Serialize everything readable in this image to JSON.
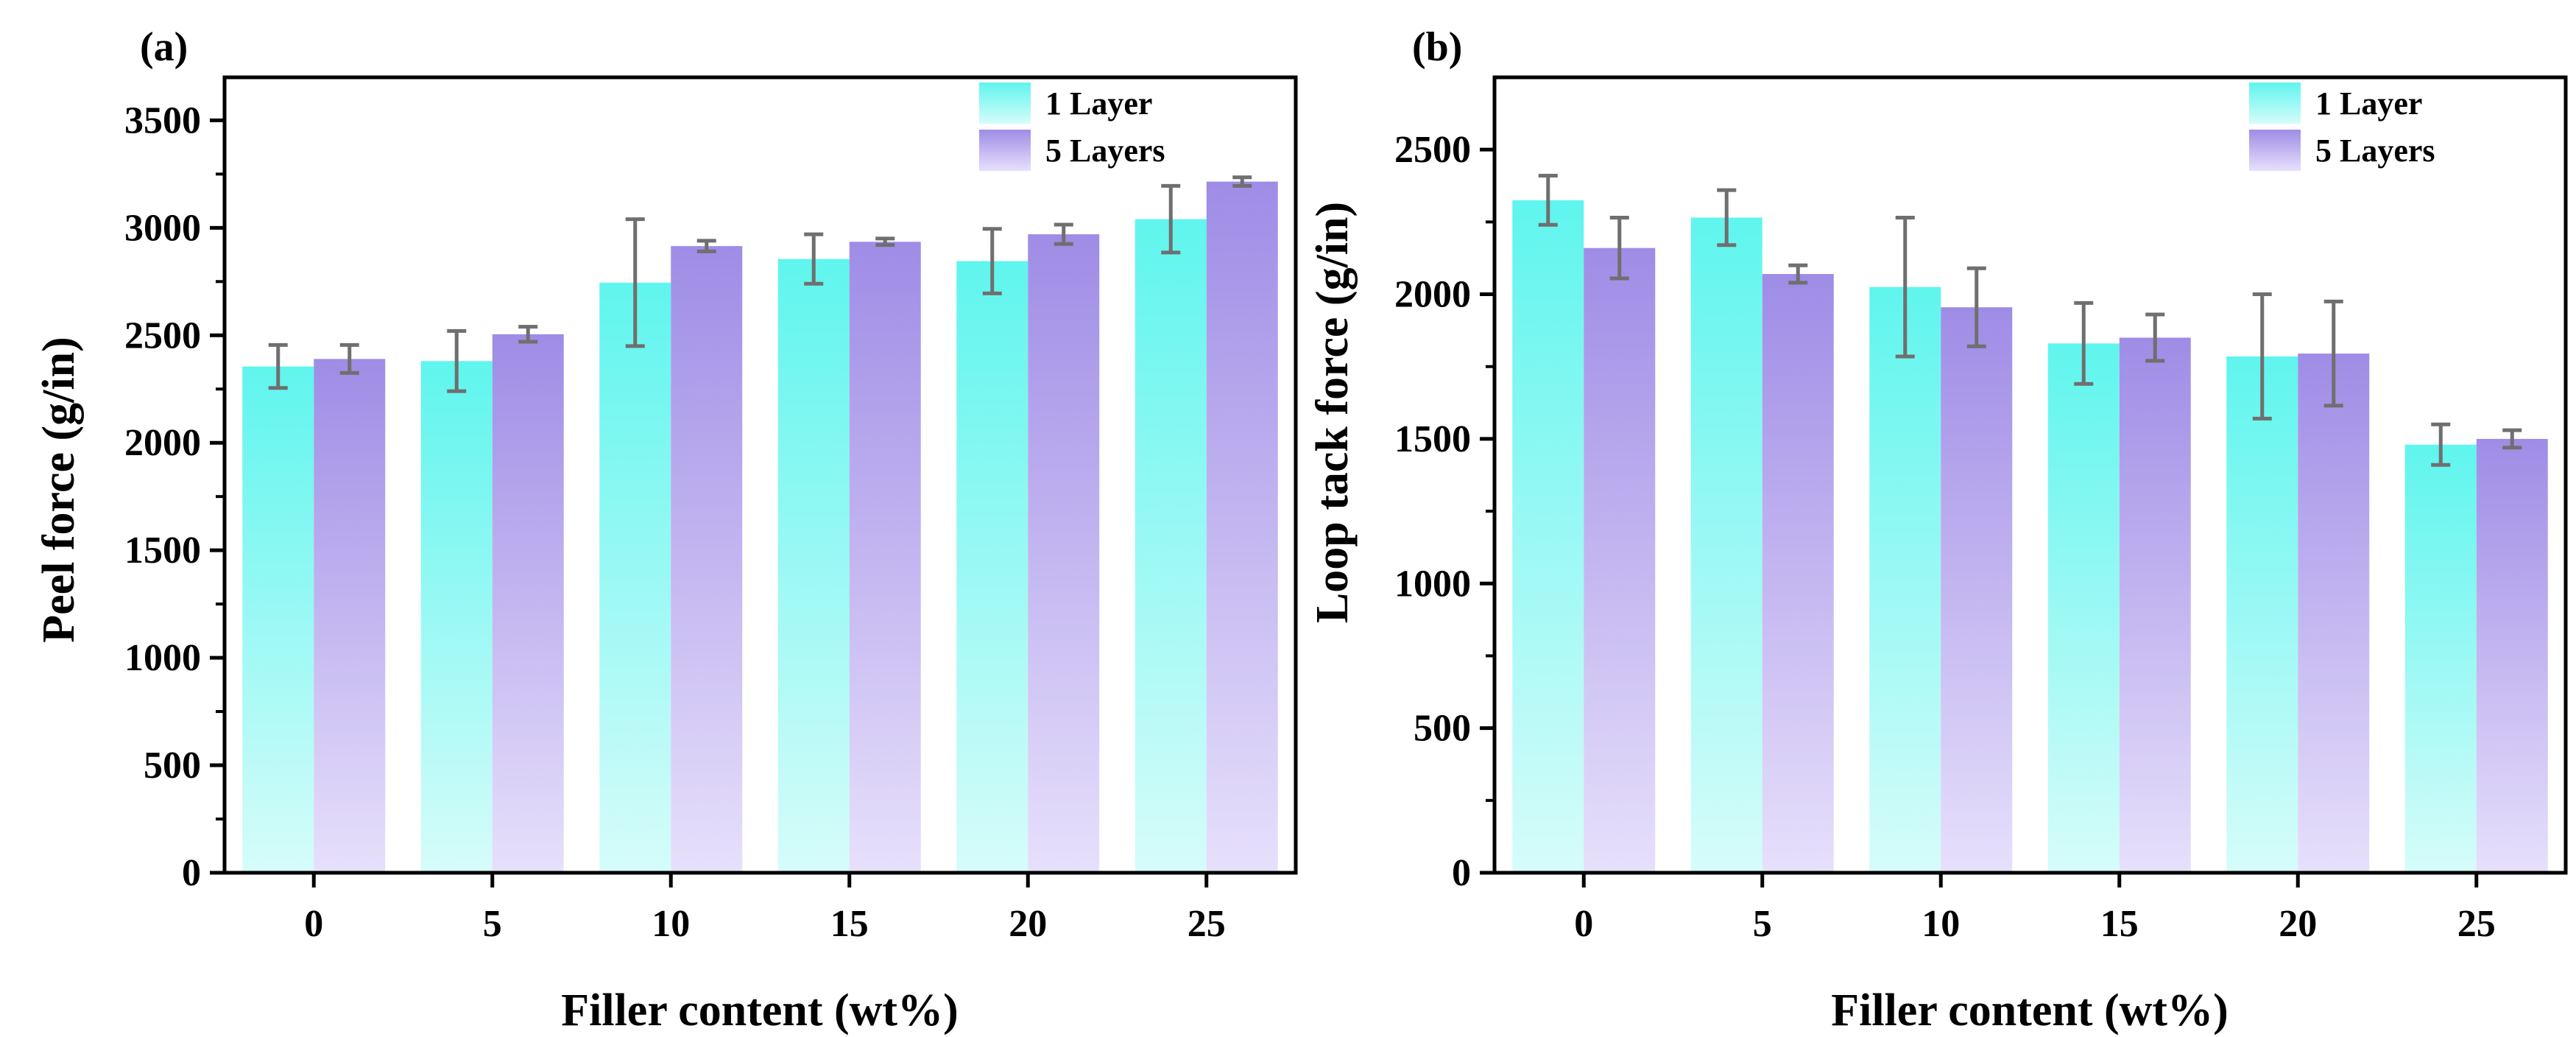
{
  "colors": {
    "series_1_top": "#5ff5ee",
    "series_1_bottom": "#d6fcfa",
    "series_2_top": "#9f8ce6",
    "series_2_bottom": "#e7e0fb",
    "error_bar": "#6f6f6f",
    "axis": "#000000"
  },
  "chart_data": [
    {
      "type": "bar",
      "panel_label": "(a)",
      "xlabel": "Filler content (wt%)",
      "ylabel": "Peel force (g/in)",
      "categories": [
        "0",
        "5",
        "10",
        "15",
        "20",
        "25"
      ],
      "ylim": [
        0,
        3700
      ],
      "yticks": [
        0,
        500,
        1000,
        1500,
        2000,
        2500,
        3000,
        3500
      ],
      "legend_position": "top-right",
      "grid": false,
      "series": [
        {
          "name": "1 Layer",
          "values": [
            2355,
            2380,
            2745,
            2855,
            2845,
            3040
          ],
          "errors": [
            100,
            140,
            295,
            115,
            150,
            155
          ]
        },
        {
          "name": "5 Layers",
          "values": [
            2390,
            2505,
            2915,
            2935,
            2970,
            3215
          ],
          "errors": [
            65,
            35,
            25,
            15,
            45,
            20
          ]
        }
      ]
    },
    {
      "type": "bar",
      "panel_label": "(b)",
      "xlabel": "Filler content (wt%)",
      "ylabel": "Loop tack force (g/in)",
      "categories": [
        "0",
        "5",
        "10",
        "15",
        "20",
        "25"
      ],
      "ylim": [
        0,
        2750
      ],
      "yticks": [
        0,
        500,
        1000,
        1500,
        2000,
        2500
      ],
      "legend_position": "top-right",
      "grid": false,
      "series": [
        {
          "name": "1 Layer",
          "values": [
            2325,
            2265,
            2025,
            1830,
            1785,
            1480
          ],
          "errors": [
            85,
            95,
            240,
            140,
            215,
            70
          ]
        },
        {
          "name": "5 Layers",
          "values": [
            2160,
            2070,
            1955,
            1850,
            1795,
            1500
          ],
          "errors": [
            105,
            30,
            135,
            80,
            180,
            30
          ]
        }
      ]
    }
  ]
}
